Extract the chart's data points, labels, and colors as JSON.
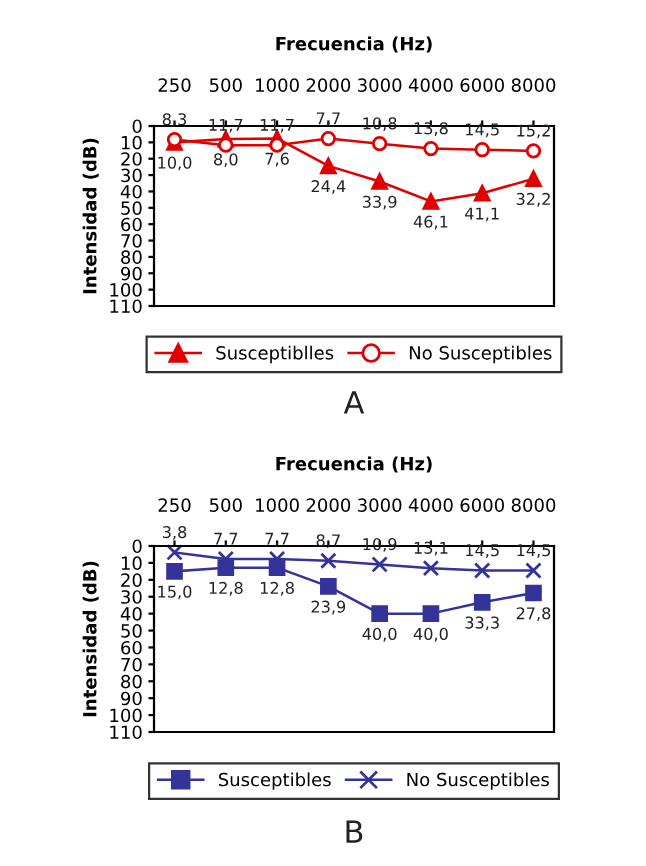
{
  "chart_data": [
    {
      "type": "line",
      "xlabel": "Frecuencia (Hz)",
      "ylabel": "Intensidad (dB)",
      "categories": [
        "250",
        "500",
        "1000",
        "2000",
        "3000",
        "4000",
        "6000",
        "8000"
      ],
      "ylim": [
        110,
        0
      ],
      "yticks": [
        0,
        10,
        20,
        30,
        40,
        50,
        60,
        70,
        80,
        90,
        100,
        110
      ],
      "grid": false,
      "legend": "bottom",
      "annotations": [
        "A"
      ],
      "series": [
        {
          "name": "Susceptiblles",
          "color": "#e00000",
          "marker": "triangle",
          "values": [
            10.0,
            8.0,
            7.6,
            24.4,
            33.9,
            46.1,
            41.1,
            32.2
          ],
          "value_labels": [
            "10,0",
            "8,0",
            "7,6",
            "24,4",
            "33,9",
            "46,1",
            "41,1",
            "32,2"
          ]
        },
        {
          "name": "No Susceptibles",
          "color": "#e00000",
          "marker": "circle",
          "values": [
            8.3,
            11.7,
            11.7,
            7.7,
            10.8,
            13.8,
            14.5,
            15.2
          ],
          "value_labels": [
            "8,3",
            "11,7",
            "11,7",
            "7,7",
            "10,8",
            "13,8",
            "14,5",
            "15,2"
          ]
        }
      ]
    },
    {
      "type": "line",
      "xlabel": "Frecuencia (Hz)",
      "ylabel": "Intensidad (dB)",
      "categories": [
        "250",
        "500",
        "1000",
        "2000",
        "3000",
        "4000",
        "6000",
        "8000"
      ],
      "ylim": [
        110,
        0
      ],
      "yticks": [
        0,
        10,
        20,
        30,
        40,
        50,
        60,
        70,
        80,
        90,
        100,
        110
      ],
      "grid": false,
      "legend": "bottom",
      "annotations": [
        "B"
      ],
      "series": [
        {
          "name": "Susceptibles",
          "color": "#333399",
          "marker": "square",
          "values": [
            15.0,
            12.8,
            12.8,
            23.9,
            40.0,
            40.0,
            33.3,
            27.8
          ],
          "value_labels": [
            "15,0",
            "12,8",
            "12,8",
            "23,9",
            "40,0",
            "40,0",
            "33,3",
            "27,8"
          ]
        },
        {
          "name": "No Susceptibles",
          "color": "#333399",
          "marker": "cross",
          "values": [
            3.8,
            7.7,
            7.7,
            8.7,
            10.9,
            13.1,
            14.5,
            14.5
          ],
          "value_labels": [
            "3,8",
            "7,7",
            "7,7",
            "8,7",
            "10,9",
            "13,1",
            "14,5",
            "14,5"
          ]
        }
      ]
    }
  ]
}
